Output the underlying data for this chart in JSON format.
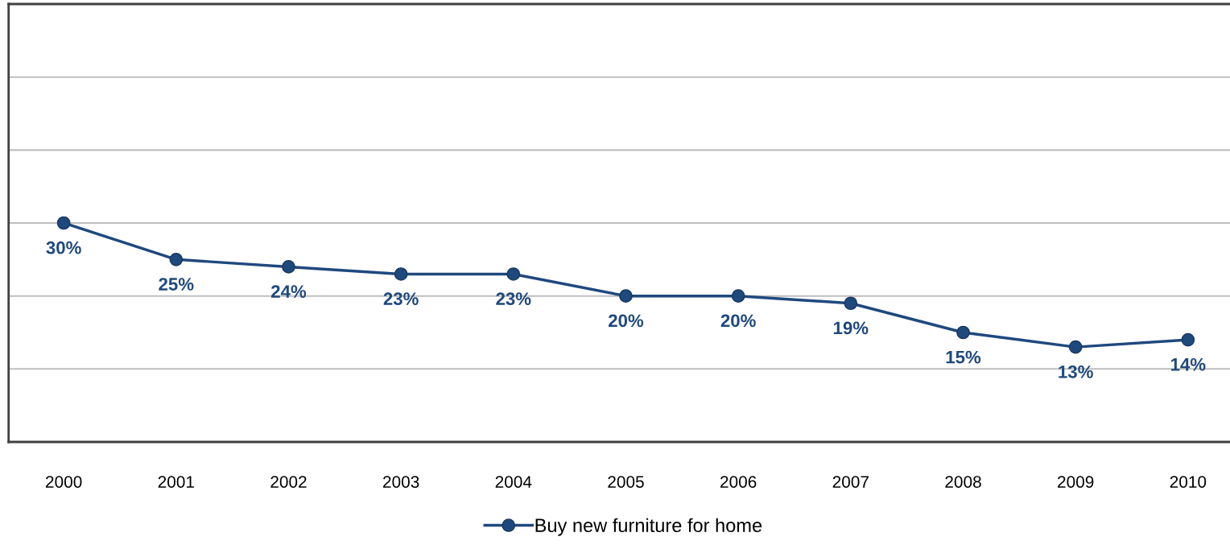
{
  "chart_data": {
    "type": "line",
    "categories": [
      "2000",
      "2001",
      "2002",
      "2003",
      "2004",
      "2005",
      "2006",
      "2007",
      "2008",
      "2009",
      "2010"
    ],
    "series": [
      {
        "name": "Buy new furniture for home",
        "color": "#1f497d",
        "values": [
          30,
          25,
          24,
          23,
          23,
          20,
          20,
          19,
          15,
          13,
          14
        ],
        "value_labels": [
          "30%",
          "25%",
          "24%",
          "23%",
          "23%",
          "20%",
          "20%",
          "19%",
          "15%",
          "13%",
          "14%"
        ]
      }
    ],
    "ylim": [
      0,
      60
    ],
    "yticks": [
      {
        "value": 0,
        "label": null
      },
      {
        "value": 10,
        "label": null
      },
      {
        "value": 20,
        "label": null
      },
      {
        "value": 30,
        "label": null
      },
      {
        "value": 40,
        "label": null
      },
      {
        "value": 50,
        "label": null
      },
      {
        "value": 60,
        "label": null
      }
    ],
    "tick_labels": "x",
    "grid": "y",
    "legend": "bottom",
    "marker": "circle",
    "line_style": "solid"
  }
}
